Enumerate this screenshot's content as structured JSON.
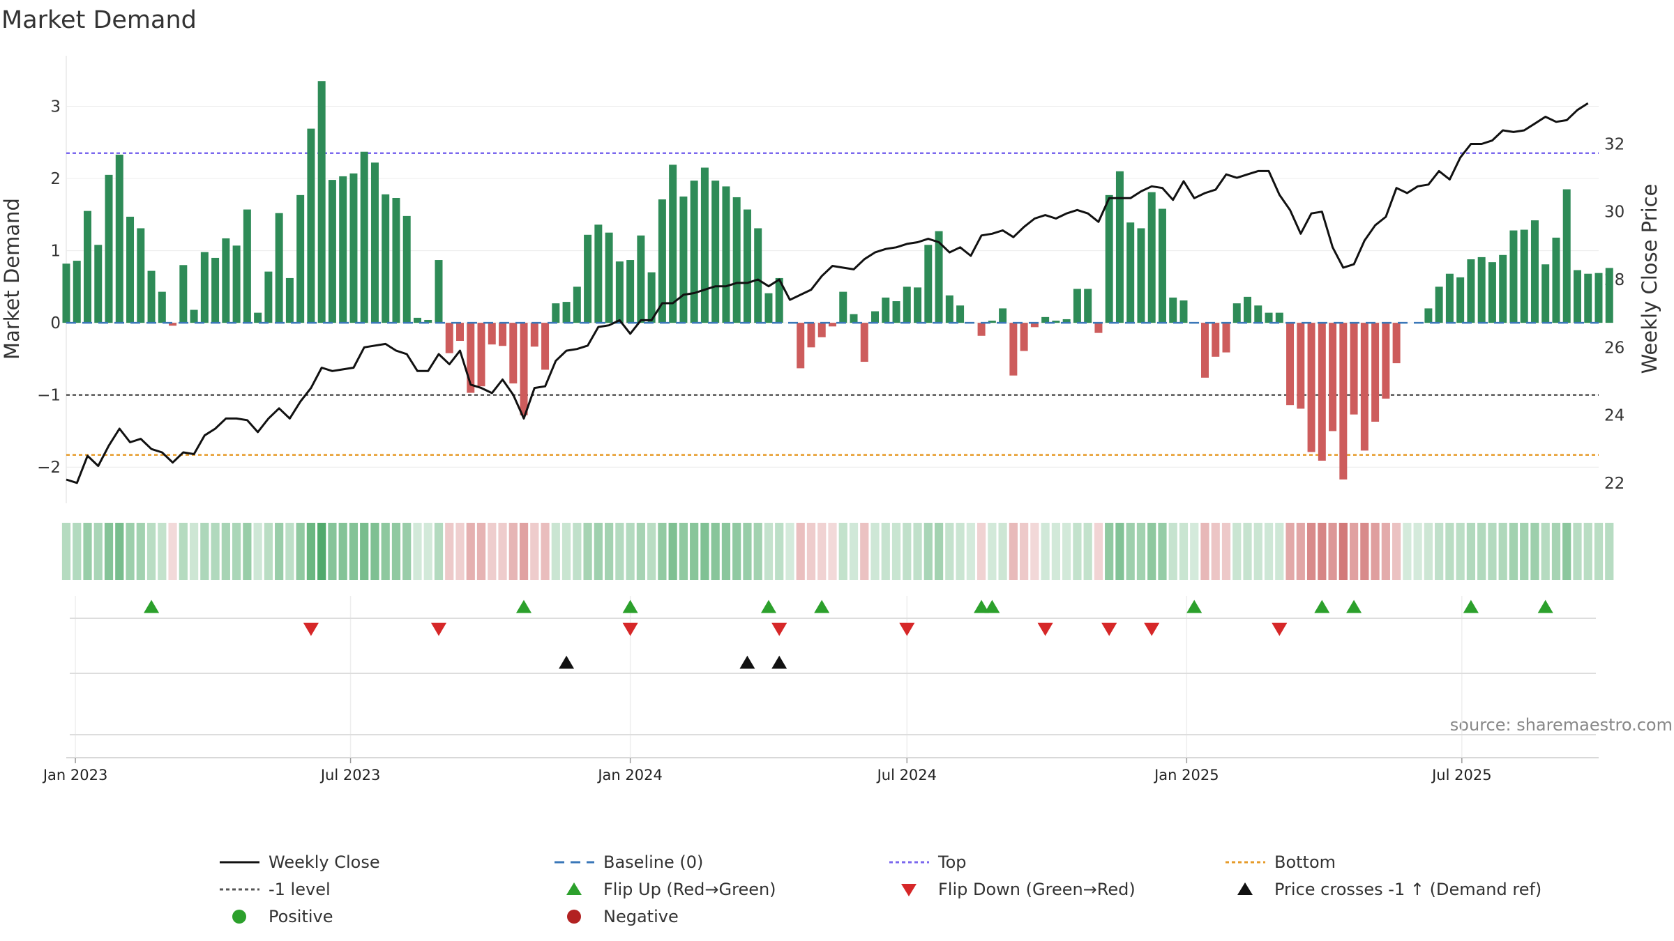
{
  "chart_data": {
    "type": "bar",
    "title": "Market Demand",
    "ylabel_left": "Market Demand",
    "ylabel_right": "Weekly Close Price",
    "ylim_left": [
      -2.5,
      3.7
    ],
    "ylim_right": [
      21.4,
      34.6
    ],
    "yticks_left": [
      3,
      2,
      1,
      0,
      -1,
      -2
    ],
    "ytick_labels_left": [
      "3",
      "2",
      "1",
      "0",
      "−1",
      "−2"
    ],
    "yticks_right": [
      32,
      30,
      28,
      26,
      24,
      22
    ],
    "ytick_labels_right": [
      "32",
      "30",
      "28",
      "26",
      "24",
      "22"
    ],
    "x_start": "2022-12-26",
    "x_end": "2025-09-29",
    "x_ticks": [
      {
        "date": "2023-01-01",
        "label": "Jan 2023"
      },
      {
        "date": "2023-07-01",
        "label": "Jul 2023"
      },
      {
        "date": "2024-01-01",
        "label": "Jan 2024"
      },
      {
        "date": "2024-07-01",
        "label": "Jul 2024"
      },
      {
        "date": "2025-01-01",
        "label": "Jan 2025"
      },
      {
        "date": "2025-07-01",
        "label": "Jul 2025"
      }
    ],
    "week_start": "2022-12-26",
    "demand": [
      0.82,
      0.86,
      1.55,
      1.08,
      2.05,
      2.33,
      1.47,
      1.31,
      0.72,
      0.43,
      -0.04,
      0.8,
      0.18,
      0.98,
      0.9,
      1.17,
      1.07,
      1.57,
      0.14,
      0.71,
      1.52,
      0.62,
      1.77,
      2.69,
      3.35,
      1.98,
      2.03,
      2.07,
      2.37,
      2.22,
      1.78,
      1.73,
      1.48,
      0.07,
      0.04,
      0.87,
      -0.42,
      -0.25,
      -0.97,
      -0.88,
      -0.3,
      -0.32,
      -0.84,
      -1.28,
      -0.33,
      -0.65,
      0.27,
      0.29,
      0.5,
      1.22,
      1.36,
      1.25,
      0.85,
      0.87,
      1.21,
      0.7,
      1.71,
      2.19,
      1.75,
      1.97,
      2.15,
      1.97,
      1.89,
      1.74,
      1.57,
      1.31,
      0.41,
      0.62,
      0,
      -0.63,
      -0.34,
      -0.2,
      -0.05,
      0.43,
      0.12,
      -0.54,
      0.16,
      0.35,
      0.3,
      0.5,
      0.49,
      1.08,
      1.27,
      0.38,
      0.24,
      0,
      -0.18,
      0.03,
      0.2,
      -0.73,
      -0.39,
      -0.06,
      0.08,
      0.03,
      0.05,
      0.47,
      0.47,
      -0.14,
      1.77,
      2.1,
      1.39,
      1.31,
      1.81,
      1.58,
      0.35,
      0.31,
      0,
      -0.76,
      -0.47,
      -0.41,
      0.27,
      0.36,
      0.24,
      0.14,
      0.14,
      -1.14,
      -1.19,
      -1.79,
      -1.91,
      -1.5,
      -2.17,
      -1.27,
      -1.77,
      -1.37,
      -1.05,
      -0.56,
      0,
      0.01,
      0.2,
      0.5,
      0.68,
      0.63,
      0.88,
      0.91,
      0.84,
      0.94,
      1.28,
      1.29,
      1.42,
      0.81,
      1.18,
      1.85,
      0.73,
      0.68,
      0.69,
      0.76
    ],
    "close": [
      22.1,
      22.0,
      22.8,
      22.5,
      23.1,
      23.6,
      23.2,
      23.3,
      23.0,
      22.9,
      22.6,
      22.9,
      22.85,
      23.4,
      23.6,
      23.9,
      23.9,
      23.85,
      23.5,
      23.9,
      24.2,
      23.9,
      24.4,
      24.8,
      25.4,
      25.3,
      25.35,
      25.4,
      26.0,
      26.05,
      26.1,
      25.9,
      25.8,
      25.3,
      25.3,
      25.8,
      25.5,
      25.9,
      24.9,
      24.8,
      24.65,
      25.05,
      24.6,
      23.9,
      24.8,
      24.85,
      25.6,
      25.9,
      25.95,
      26.05,
      26.6,
      26.65,
      26.8,
      26.4,
      26.8,
      26.8,
      27.3,
      27.3,
      27.55,
      27.6,
      27.7,
      27.8,
      27.8,
      27.9,
      27.9,
      28.0,
      27.8,
      28.0,
      27.4,
      27.55,
      27.7,
      28.1,
      28.4,
      28.35,
      28.3,
      28.6,
      28.8,
      28.9,
      28.95,
      29.05,
      29.1,
      29.2,
      29.1,
      28.8,
      28.95,
      28.7,
      29.3,
      29.35,
      29.45,
      29.25,
      29.55,
      29.8,
      29.9,
      29.8,
      29.95,
      30.05,
      29.95,
      29.7,
      30.4,
      30.4,
      30.4,
      30.6,
      30.75,
      30.7,
      30.35,
      30.9,
      30.4,
      30.55,
      30.65,
      31.1,
      31.0,
      31.1,
      31.2,
      31.2,
      30.5,
      30.05,
      29.35,
      29.95,
      30.0,
      28.95,
      28.35,
      28.45,
      29.15,
      29.6,
      29.85,
      30.7,
      30.55,
      30.75,
      30.8,
      31.2,
      30.95,
      31.6,
      32.0,
      32.0,
      32.1,
      32.4,
      32.35,
      32.4,
      32.6,
      32.8,
      32.65,
      32.7,
      33.0,
      33.2
    ],
    "thresholds": {
      "top": 2.35,
      "baseline": 0,
      "minus_one": -1,
      "bottom": -1.83
    },
    "flip_up_weeks": [
      8,
      43,
      53,
      66,
      71,
      86,
      87,
      106,
      118,
      121,
      132,
      139
    ],
    "flip_down_weeks": [
      23,
      35,
      53,
      67,
      79,
      92,
      98,
      102,
      114
    ],
    "price_cross_weeks": [
      47,
      64,
      67
    ]
  },
  "colors": {
    "positive_bar": "#2e8b57",
    "negative_bar": "#cd5c5c",
    "close_line": "#111111",
    "top_line": "#7b68ee",
    "bottom_line": "#e69b2a",
    "baseline": "#3a77b8",
    "minus_one_line": "#555555",
    "flip_up": "#2ca02c",
    "flip_down": "#d62728",
    "cross": "#111111",
    "negative_dot": "#b22222"
  },
  "legend": [
    {
      "label": "Weekly Close",
      "icon": "solid-line",
      "color": "#111111"
    },
    {
      "label": "Baseline (0)",
      "icon": "dashed-line",
      "color": "#3a77b8"
    },
    {
      "label": "Top",
      "icon": "dotted-line",
      "color": "#7b68ee"
    },
    {
      "label": "Bottom",
      "icon": "dotted-line",
      "color": "#e69b2a"
    },
    {
      "label": "-1 level",
      "icon": "dotted-line",
      "color": "#555555"
    },
    {
      "label": "Flip Up (Red→Green)",
      "icon": "triangle-up",
      "color": "#2ca02c"
    },
    {
      "label": "Flip Down (Green→Red)",
      "icon": "triangle-down",
      "color": "#d62728"
    },
    {
      "label": "Price crosses -1 ↑ (Demand ref)",
      "icon": "triangle-up",
      "color": "#111111"
    },
    {
      "label": "Positive",
      "icon": "circle",
      "color": "#2ca02c"
    },
    {
      "label": "Negative",
      "icon": "circle",
      "color": "#b22222"
    }
  ],
  "source": "source: sharemaestro.com"
}
